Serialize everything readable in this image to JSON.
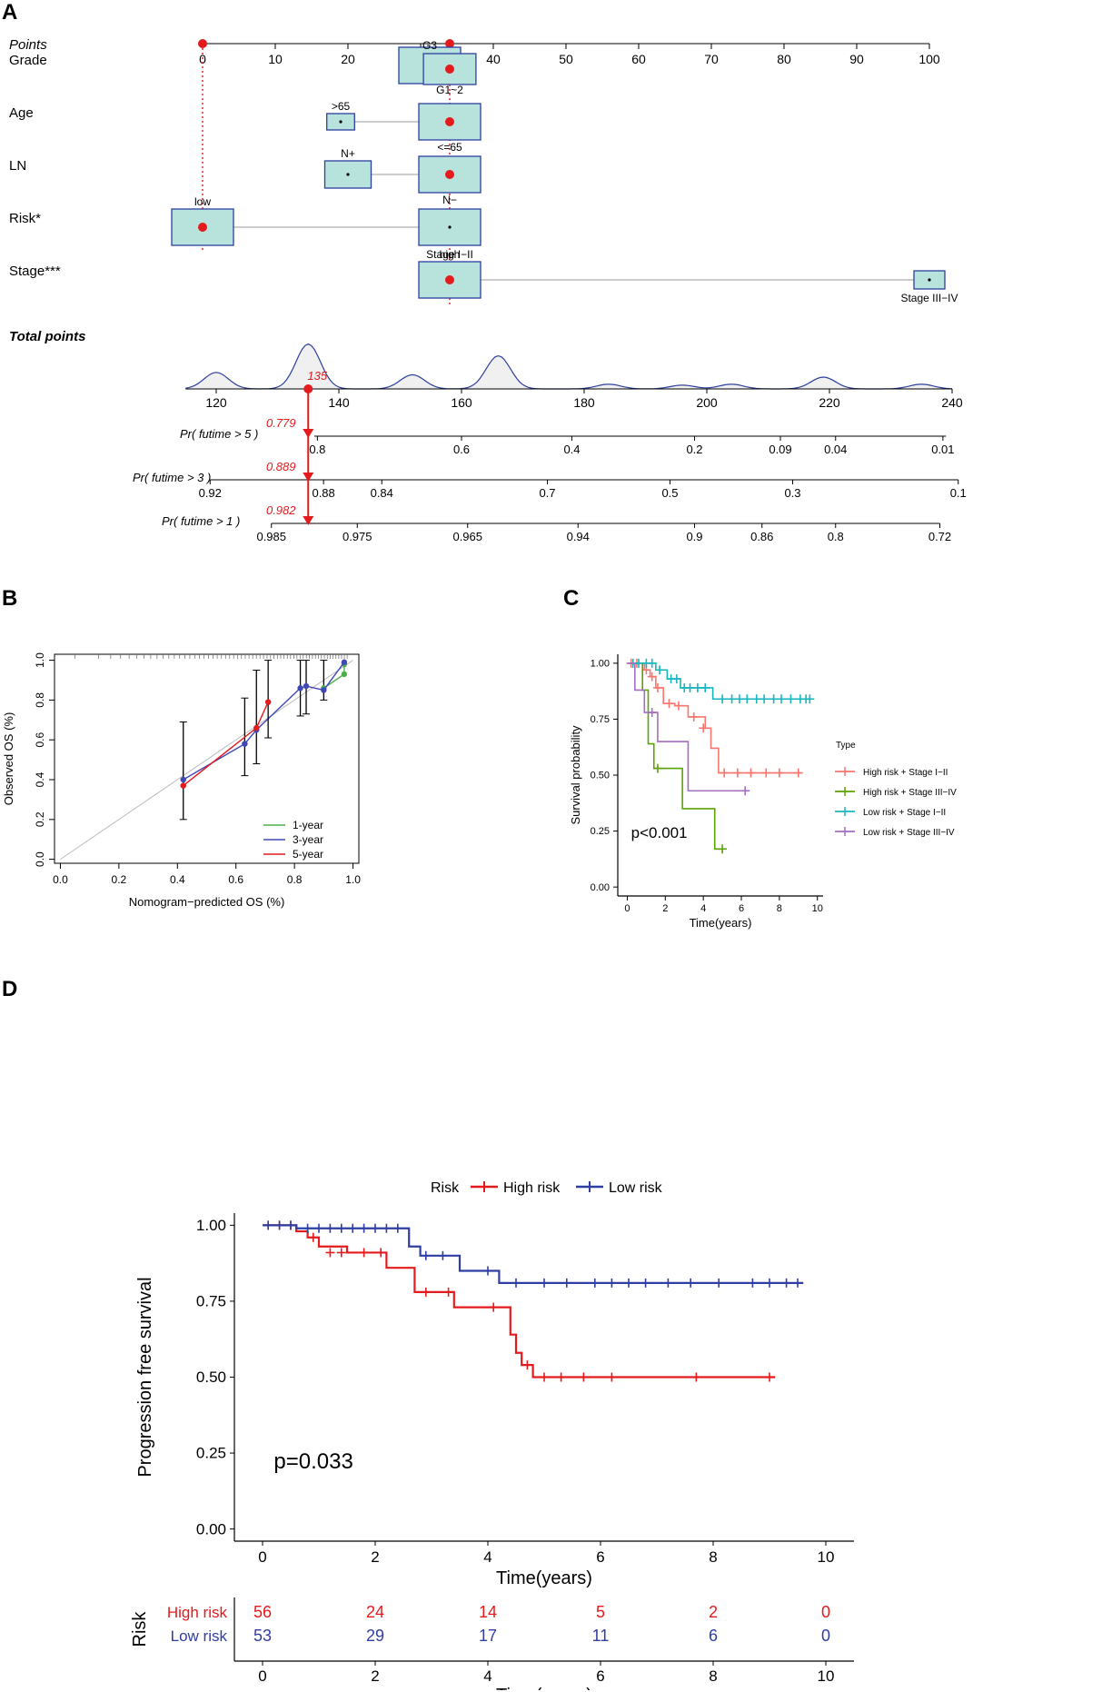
{
  "panel_labels": {
    "a": "A",
    "b": "B",
    "c": "C",
    "d": "D"
  },
  "chart_data": [
    {
      "id": "A",
      "type": "nomogram",
      "points_label": "Points",
      "points_ticks": [
        "0",
        "10",
        "20",
        "30",
        "40",
        "50",
        "60",
        "70",
        "80",
        "90",
        "100"
      ],
      "points_tick_values": [
        0,
        10,
        20,
        30,
        40,
        50,
        60,
        70,
        80,
        90,
        100
      ],
      "selected_points": 34,
      "variables": [
        {
          "label": "Grade",
          "levels": [
            {
              "name": "G3",
              "points": 33,
              "weight": 1.0
            },
            {
              "name": "G1~2",
              "points": 34,
              "weight": 0.85
            }
          ]
        },
        {
          "label": "Age",
          "levels": [
            {
              "name": ">65",
              "points": 19,
              "weight": 0.45
            },
            {
              "name": "<=65",
              "points": 34,
              "weight": 1.0
            }
          ]
        },
        {
          "label": "LN",
          "levels": [
            {
              "name": "N+",
              "points": 20,
              "weight": 0.75
            },
            {
              "name": "N−",
              "points": 34,
              "weight": 1.0
            }
          ]
        },
        {
          "label": "Risk*",
          "levels": [
            {
              "name": "low",
              "points": 0,
              "weight": 1.0
            },
            {
              "name": "high",
              "points": 34,
              "weight": 1.0
            }
          ]
        },
        {
          "label": "Stage***",
          "levels": [
            {
              "name": "Stage I−II",
              "points": 34,
              "weight": 1.0
            },
            {
              "name": "Stage III−IV",
              "points": 100,
              "weight": 0.5
            }
          ]
        }
      ],
      "total_points_label": "Total points",
      "total_ticks": [
        "120",
        "140",
        "160",
        "180",
        "200",
        "220",
        "240"
      ],
      "total_tick_values": [
        120,
        140,
        160,
        180,
        200,
        220,
        240
      ],
      "total_range": [
        115,
        240
      ],
      "density_peaks": [
        [
          120,
          0.35
        ],
        [
          135,
          0.95
        ],
        [
          152,
          0.3
        ],
        [
          166,
          0.7
        ],
        [
          184,
          0.1
        ],
        [
          196,
          0.08
        ],
        [
          204,
          0.1
        ],
        [
          219,
          0.25
        ],
        [
          235,
          0.1
        ]
      ],
      "selected_total": 135,
      "selected_total_label": "135",
      "probabilities": [
        {
          "label": "Pr( futime > 5 )",
          "value_label": "0.779",
          "ticks": [
            "0.8",
            "0.6",
            "0.4",
            "0.2",
            "0.09",
            "0.04",
            "0.01"
          ],
          "tick_totals": [
            136.5,
            160,
            178,
            198,
            212,
            221,
            238.5
          ],
          "axis": [
            136,
            239
          ]
        },
        {
          "label": "Pr( futime > 3 )",
          "value_label": "0.889",
          "ticks": [
            "0.92",
            "0.88",
            "0.84",
            "0.7",
            "0.5",
            "0.3",
            "0.1"
          ],
          "tick_totals": [
            119,
            137.5,
            147,
            174,
            194,
            214,
            241
          ],
          "axis": [
            119,
            241
          ]
        },
        {
          "label": "Pr( futime > 1 )",
          "value_label": "0.982",
          "ticks": [
            "0.985",
            "0.975",
            "0.965",
            "0.94",
            "0.9",
            "0.86",
            "0.8",
            "0.72"
          ],
          "tick_totals": [
            129,
            143,
            161,
            179,
            198,
            209,
            221,
            238
          ],
          "axis": [
            129,
            238
          ]
        }
      ]
    },
    {
      "id": "B",
      "type": "line",
      "xlabel": "Nomogram−predicted OS (%)",
      "ylabel": "Observed OS (%)",
      "xlim": [
        -0.02,
        1.02
      ],
      "ylim": [
        -0.02,
        1.03
      ],
      "x_ticks": [
        "0.0",
        "0.2",
        "0.4",
        "0.6",
        "0.8",
        "1.0"
      ],
      "x_tick_values": [
        0,
        0.2,
        0.4,
        0.6,
        0.8,
        1.0
      ],
      "y_ticks": [
        "0.0",
        "0.2",
        "0.4",
        "0.6",
        "0.8",
        "1.0"
      ],
      "y_tick_values": [
        0,
        0.2,
        0.4,
        0.6,
        0.8,
        1.0
      ],
      "series": [
        {
          "name": "1-year",
          "color": "#4daf4a",
          "x": [
            0.9,
            0.97,
            0.97
          ],
          "y": [
            0.86,
            0.93,
            0.98
          ],
          "err": [
            [
              0.9,
              0.8,
              1.0
            ]
          ]
        },
        {
          "name": "3-year",
          "color": "#3f48b4",
          "x": [
            0.42,
            0.63,
            0.67,
            0.82,
            0.84,
            0.9,
            0.97
          ],
          "y": [
            0.4,
            0.58,
            0.65,
            0.86,
            0.87,
            0.85,
            0.99
          ],
          "err": [
            [
              0.42,
              0.2,
              0.69
            ],
            [
              0.63,
              0.42,
              0.81
            ],
            [
              0.67,
              0.48,
              0.95
            ],
            [
              0.82,
              0.72,
              1.0
            ],
            [
              0.84,
              0.73,
              1.0
            ]
          ]
        },
        {
          "name": "5-year",
          "color": "#e41a1c",
          "x": [
            0.42,
            0.67,
            0.71
          ],
          "y": [
            0.37,
            0.66,
            0.79
          ],
          "err": [
            [
              0.71,
              0.61,
              1.0
            ]
          ]
        }
      ]
    },
    {
      "id": "C",
      "type": "line",
      "xlabel": "Time(years)",
      "ylabel": "Survival probability",
      "xlim": [
        -0.5,
        10.3
      ],
      "ylim": [
        -0.04,
        1.04
      ],
      "x_ticks": [
        "0",
        "2",
        "4",
        "6",
        "8",
        "10"
      ],
      "x_tick_values": [
        0,
        2,
        4,
        6,
        8,
        10
      ],
      "y_ticks": [
        "0.00",
        "0.25",
        "0.50",
        "0.75",
        "1.00"
      ],
      "y_tick_values": [
        0,
        0.25,
        0.5,
        0.75,
        1.0
      ],
      "annotation": "p<0.001",
      "legend_title": "Type",
      "series": [
        {
          "name": "High risk + Stage I−II",
          "color": "#f8766d",
          "x": [
            0,
            0.9,
            1.2,
            1.5,
            1.9,
            2.5,
            3.2,
            4.1,
            4.4,
            4.8,
            9.1
          ],
          "y": [
            1.0,
            0.97,
            0.94,
            0.89,
            0.82,
            0.81,
            0.76,
            0.71,
            0.62,
            0.51,
            0.51
          ],
          "censor": [
            [
              0.2,
              1.0
            ],
            [
              0.5,
              1.0
            ],
            [
              1.0,
              0.97
            ],
            [
              1.3,
              0.94
            ],
            [
              1.6,
              0.89
            ],
            [
              2.2,
              0.82
            ],
            [
              2.7,
              0.81
            ],
            [
              3.5,
              0.76
            ],
            [
              4.0,
              0.71
            ],
            [
              5.1,
              0.51
            ],
            [
              5.8,
              0.51
            ],
            [
              6.5,
              0.51
            ],
            [
              7.3,
              0.51
            ],
            [
              8.0,
              0.51
            ],
            [
              9.0,
              0.51
            ]
          ]
        },
        {
          "name": "High risk + Stage III−IV",
          "color": "#5ba300",
          "x": [
            0,
            0.8,
            1.1,
            1.4,
            2.9,
            4.6,
            5.0
          ],
          "y": [
            1.0,
            0.88,
            0.64,
            0.53,
            0.35,
            0.17,
            0.17
          ],
          "censor": [
            [
              1.6,
              0.53
            ],
            [
              5.0,
              0.17
            ]
          ]
        },
        {
          "name": "Low risk + Stage I−II",
          "color": "#17b7c0",
          "x": [
            0,
            1.5,
            2.1,
            2.8,
            4.5,
            9.6
          ],
          "y": [
            1.0,
            0.97,
            0.93,
            0.89,
            0.84,
            0.84
          ],
          "censor": [
            [
              0.3,
              1.0
            ],
            [
              0.6,
              1.0
            ],
            [
              1.0,
              1.0
            ],
            [
              1.3,
              1.0
            ],
            [
              1.7,
              0.97
            ],
            [
              2.3,
              0.93
            ],
            [
              2.6,
              0.93
            ],
            [
              3.0,
              0.89
            ],
            [
              3.3,
              0.89
            ],
            [
              3.7,
              0.89
            ],
            [
              4.1,
              0.89
            ],
            [
              5.0,
              0.84
            ],
            [
              5.5,
              0.84
            ],
            [
              5.9,
              0.84
            ],
            [
              6.3,
              0.84
            ],
            [
              6.8,
              0.84
            ],
            [
              7.2,
              0.84
            ],
            [
              7.7,
              0.84
            ],
            [
              8.1,
              0.84
            ],
            [
              8.6,
              0.84
            ],
            [
              9.1,
              0.84
            ],
            [
              9.4,
              0.84
            ],
            [
              9.6,
              0.84
            ]
          ]
        },
        {
          "name": "Low risk + Stage III−IV",
          "color": "#a56cc1",
          "x": [
            0,
            0.4,
            0.9,
            1.6,
            3.2,
            6.2
          ],
          "y": [
            1.0,
            0.88,
            0.78,
            0.65,
            0.43,
            0.43
          ],
          "censor": [
            [
              1.3,
              0.78
            ],
            [
              6.2,
              0.43
            ]
          ]
        }
      ]
    },
    {
      "id": "D",
      "type": "line",
      "xlabel": "Time(years)",
      "ylabel": "Progression free survival",
      "xlim": [
        -0.5,
        10.5
      ],
      "ylim": [
        -0.04,
        1.04
      ],
      "x_ticks": [
        "0",
        "2",
        "4",
        "6",
        "8",
        "10"
      ],
      "x_tick_values": [
        0,
        2,
        4,
        6,
        8,
        10
      ],
      "y_ticks": [
        "0.00",
        "0.25",
        "0.50",
        "0.75",
        "1.00"
      ],
      "y_tick_values": [
        0,
        0.25,
        0.5,
        0.75,
        1.0
      ],
      "annotation": "p=0.033",
      "legend_title": "Risk",
      "series": [
        {
          "name": "High risk",
          "color": "#e41a1c",
          "x": [
            0,
            0.6,
            0.8,
            1.0,
            1.5,
            2.2,
            2.7,
            3.4,
            4.4,
            4.5,
            4.6,
            4.8,
            9.1
          ],
          "y": [
            1.0,
            0.98,
            0.96,
            0.93,
            0.91,
            0.86,
            0.78,
            0.73,
            0.64,
            0.58,
            0.54,
            0.5,
            0.5
          ],
          "censor": [
            [
              0.1,
              1.0
            ],
            [
              0.3,
              1.0
            ],
            [
              0.5,
              1.0
            ],
            [
              0.9,
              0.96
            ],
            [
              1.2,
              0.91
            ],
            [
              1.4,
              0.91
            ],
            [
              1.8,
              0.91
            ],
            [
              2.1,
              0.91
            ],
            [
              2.9,
              0.78
            ],
            [
              3.3,
              0.78
            ],
            [
              4.1,
              0.73
            ],
            [
              4.7,
              0.54
            ],
            [
              5.0,
              0.5
            ],
            [
              5.3,
              0.5
            ],
            [
              5.7,
              0.5
            ],
            [
              6.2,
              0.5
            ],
            [
              7.7,
              0.5
            ],
            [
              9.0,
              0.5
            ]
          ]
        },
        {
          "name": "Low risk",
          "color": "#2f3ea3",
          "x": [
            0,
            0.6,
            2.6,
            2.8,
            3.5,
            4.2,
            9.6
          ],
          "y": [
            1.0,
            0.99,
            0.93,
            0.9,
            0.85,
            0.81,
            0.81
          ],
          "censor": [
            [
              0.1,
              1.0
            ],
            [
              0.3,
              1.0
            ],
            [
              0.5,
              1.0
            ],
            [
              0.8,
              0.99
            ],
            [
              1.0,
              0.99
            ],
            [
              1.2,
              0.99
            ],
            [
              1.4,
              0.99
            ],
            [
              1.6,
              0.99
            ],
            [
              1.8,
              0.99
            ],
            [
              2.0,
              0.99
            ],
            [
              2.2,
              0.99
            ],
            [
              2.4,
              0.99
            ],
            [
              2.9,
              0.9
            ],
            [
              3.2,
              0.9
            ],
            [
              4.0,
              0.85
            ],
            [
              4.5,
              0.81
            ],
            [
              5.0,
              0.81
            ],
            [
              5.4,
              0.81
            ],
            [
              5.9,
              0.81
            ],
            [
              6.2,
              0.81
            ],
            [
              6.5,
              0.81
            ],
            [
              6.8,
              0.81
            ],
            [
              7.2,
              0.81
            ],
            [
              7.6,
              0.81
            ],
            [
              8.1,
              0.81
            ],
            [
              8.7,
              0.81
            ],
            [
              9.0,
              0.81
            ],
            [
              9.3,
              0.81
            ],
            [
              9.5,
              0.81
            ]
          ]
        }
      ],
      "risk_table": {
        "title": "Risk",
        "times": [
          0,
          2,
          4,
          6,
          8,
          10
        ],
        "xlabel": "Time(years)",
        "x_ticks": [
          "0",
          "2",
          "4",
          "6",
          "8",
          "10"
        ],
        "rows": [
          {
            "name": "High risk",
            "color": "#e41a1c",
            "counts": [
              "56",
              "24",
              "14",
              "5",
              "2",
              "0"
            ]
          },
          {
            "name": "Low risk",
            "color": "#2f3ea3",
            "counts": [
              "53",
              "29",
              "17",
              "11",
              "6",
              "0"
            ]
          }
        ]
      }
    }
  ]
}
